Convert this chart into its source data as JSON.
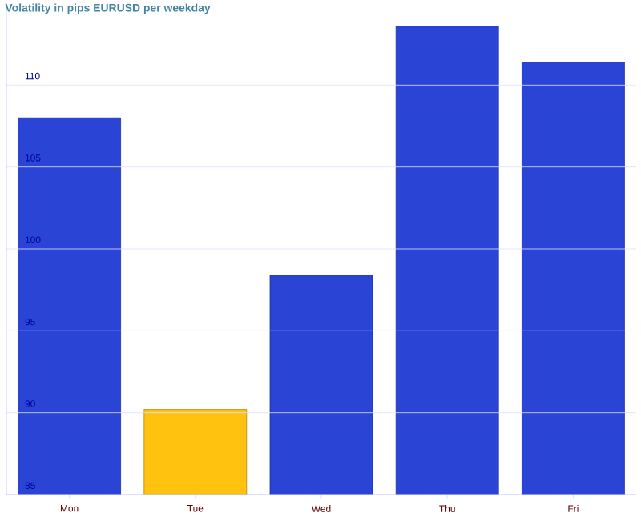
{
  "chart_data": {
    "type": "bar",
    "title": "Volatility in pips EURUSD per weekday",
    "categories": [
      "Mon",
      "Tue",
      "Wed",
      "Thu",
      "Fri"
    ],
    "values": [
      108.0,
      90.2,
      98.4,
      113.6,
      111.4
    ],
    "colors": [
      "#2a45d6",
      "#ffc20e",
      "#2a45d6",
      "#2a45d6",
      "#2a45d6"
    ],
    "ylim": [
      85,
      115
    ],
    "yticks": [
      85,
      90,
      95,
      100,
      105,
      110
    ],
    "grid": "y"
  }
}
